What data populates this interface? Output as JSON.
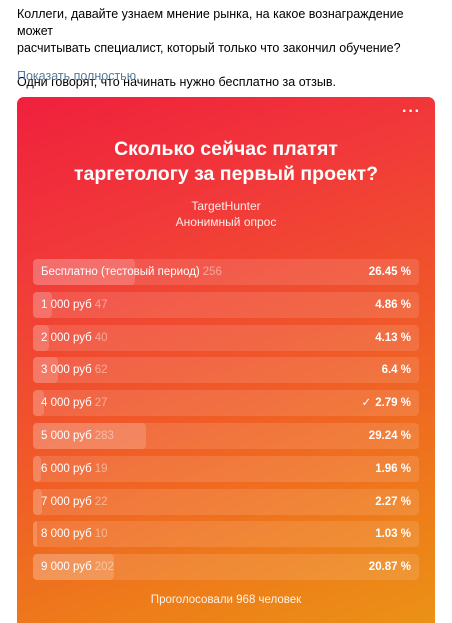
{
  "post": {
    "line1": "Коллеги, давайте узнаем мнение рынка, на какое вознаграждение может",
    "line2": "расчитывать специалист, который только что закончил обучение?",
    "line3": "Одни говорят, что начинать нужно бесплатно за отзыв.",
    "show_more": "Показать полностью..."
  },
  "poll": {
    "more_icon": "more-horizontal-icon",
    "title_line1": "Сколько сейчас платят",
    "title_line2": "таргетологу за первый проект?",
    "author": "TargetHunter",
    "type": "Анонимный опрос",
    "check_mark": "✓",
    "options": [
      {
        "label": "Бесплатно (тестовый период)",
        "count": "256",
        "percent": "26.45 %",
        "value": 26.45,
        "voted": false
      },
      {
        "label": "1 000 руб",
        "count": "47",
        "percent": "4.86 %",
        "value": 4.86,
        "voted": false
      },
      {
        "label": "2 000 руб",
        "count": "40",
        "percent": "4.13 %",
        "value": 4.13,
        "voted": false
      },
      {
        "label": "3 000 руб",
        "count": "62",
        "percent": "6.4 %",
        "value": 6.4,
        "voted": false
      },
      {
        "label": "4 000 руб",
        "count": "27",
        "percent": "2.79 %",
        "value": 2.79,
        "voted": true
      },
      {
        "label": "5 000 руб",
        "count": "283",
        "percent": "29.24 %",
        "value": 29.24,
        "voted": false
      },
      {
        "label": "6 000 руб",
        "count": "19",
        "percent": "1.96 %",
        "value": 1.96,
        "voted": false
      },
      {
        "label": "7 000 руб",
        "count": "22",
        "percent": "2.27 %",
        "value": 2.27,
        "voted": false
      },
      {
        "label": "8 000 руб",
        "count": "10",
        "percent": "1.03 %",
        "value": 1.03,
        "voted": false
      },
      {
        "label": "9 000 руб",
        "count": "202",
        "percent": "20.87 %",
        "value": 20.87,
        "voted": false
      }
    ],
    "total": "Проголосовали 968 человек"
  },
  "colors": {
    "gradient_start": "#f0203c",
    "gradient_end": "#eb9216",
    "link": "#5c7a99"
  }
}
